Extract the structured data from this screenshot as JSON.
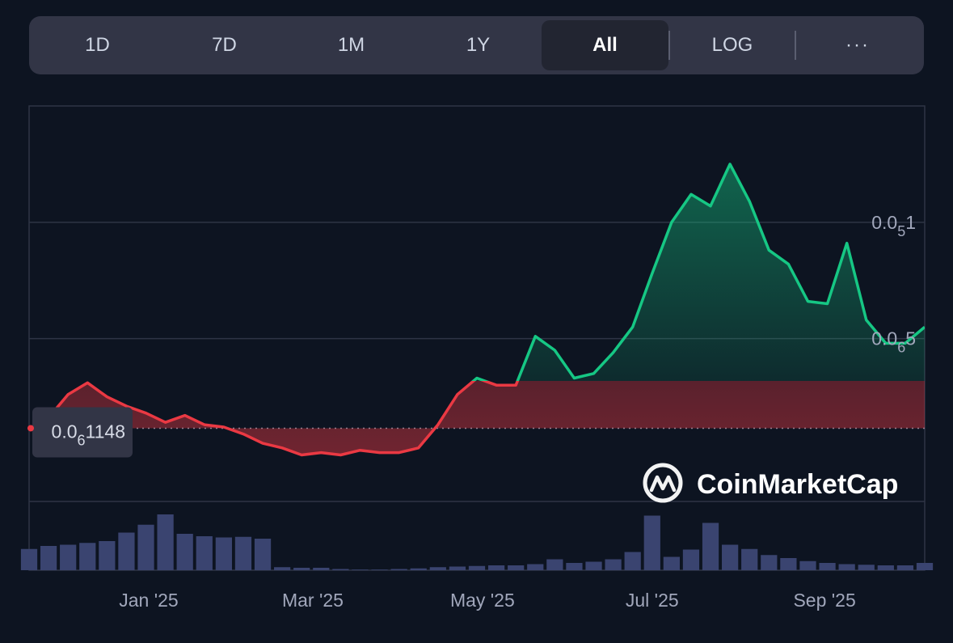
{
  "toolbar": {
    "ranges": [
      "1D",
      "7D",
      "1M",
      "1Y",
      "All"
    ],
    "active": "All",
    "log_label": "LOG",
    "more_label": "···"
  },
  "watermark": "CoinMarketCap",
  "colors": {
    "background": "#0d1421",
    "up": "#16c784",
    "down": "#ea3943",
    "grid": "#2e3445",
    "volume": "#3a4470"
  },
  "chart_data": {
    "type": "line",
    "title": "",
    "xlabel": "",
    "ylabel": "",
    "x_ticks": [
      "Jan '25",
      "Mar '25",
      "May '25",
      "Jul '25",
      "Sep '25"
    ],
    "y_tick_labels": [
      {
        "prefix": "0.0",
        "sub": "5",
        "suffix": "1",
        "value": 1e-06
      },
      {
        "prefix": "0.0",
        "sub": "6",
        "suffix": "5",
        "value": 5e-07
      }
    ],
    "baseline": {
      "prefix": "0.0",
      "sub": "6",
      "suffix": "1148",
      "value": 1.148e-07
    },
    "ylim": [
      -2e-07,
      1.5e-06
    ],
    "x": [
      "2024-11-19",
      "2024-11-26",
      "2024-12-03",
      "2024-12-10",
      "2024-12-17",
      "2024-12-24",
      "2024-12-31",
      "2025-01-07",
      "2025-01-14",
      "2025-01-21",
      "2025-01-28",
      "2025-02-04",
      "2025-02-11",
      "2025-02-18",
      "2025-02-25",
      "2025-03-04",
      "2025-03-11",
      "2025-03-18",
      "2025-03-25",
      "2025-04-01",
      "2025-04-08",
      "2025-04-15",
      "2025-04-22",
      "2025-04-29",
      "2025-05-06",
      "2025-05-13",
      "2025-05-20",
      "2025-05-27",
      "2025-06-03",
      "2025-06-10",
      "2025-06-17",
      "2025-06-24",
      "2025-07-01",
      "2025-07-08",
      "2025-07-15",
      "2025-07-22",
      "2025-07-29",
      "2025-08-05",
      "2025-08-12",
      "2025-08-19",
      "2025-08-26",
      "2025-09-02",
      "2025-09-09",
      "2025-09-16",
      "2025-09-23",
      "2025-09-30",
      "2025-10-07"
    ],
    "series": [
      {
        "values": [
          1.1e-07,
          1.6e-07,
          2.6e-07,
          3.1e-07,
          2.5e-07,
          2.1e-07,
          1.8e-07,
          1.4e-07,
          1.7e-07,
          1.3e-07,
          1.2e-07,
          9e-08,
          5e-08,
          3e-08,
          0.0,
          1e-08,
          0.0,
          2e-08,
          1e-08,
          1e-08,
          3e-08,
          1.3e-07,
          2.6e-07,
          3.3e-07,
          3e-07,
          3e-07,
          5.1e-07,
          4.5e-07,
          3.3e-07,
          3.5e-07,
          4.4e-07,
          5.5e-07,
          7.8e-07,
          1e-06,
          1.12e-06,
          1.07e-06,
          1.25e-06,
          1.09e-06,
          8.8e-07,
          8.2e-07,
          6.6e-07,
          6.5e-07,
          9.1e-07,
          5.8e-07,
          4.8e-07,
          4.8e-07,
          5.5e-07
        ]
      }
    ],
    "volume": [
      0.35,
      0.4,
      0.42,
      0.45,
      0.48,
      0.62,
      0.75,
      0.92,
      0.6,
      0.56,
      0.54,
      0.55,
      0.52,
      0.05,
      0.04,
      0.04,
      0.02,
      0.01,
      0.01,
      0.02,
      0.03,
      0.05,
      0.06,
      0.07,
      0.08,
      0.08,
      0.1,
      0.18,
      0.12,
      0.14,
      0.18,
      0.3,
      0.9,
      0.22,
      0.34,
      0.78,
      0.42,
      0.35,
      0.25,
      0.2,
      0.15,
      0.12,
      0.1,
      0.09,
      0.08,
      0.08,
      0.12
    ],
    "grid": true,
    "legend": "none",
    "log_scale": false
  }
}
